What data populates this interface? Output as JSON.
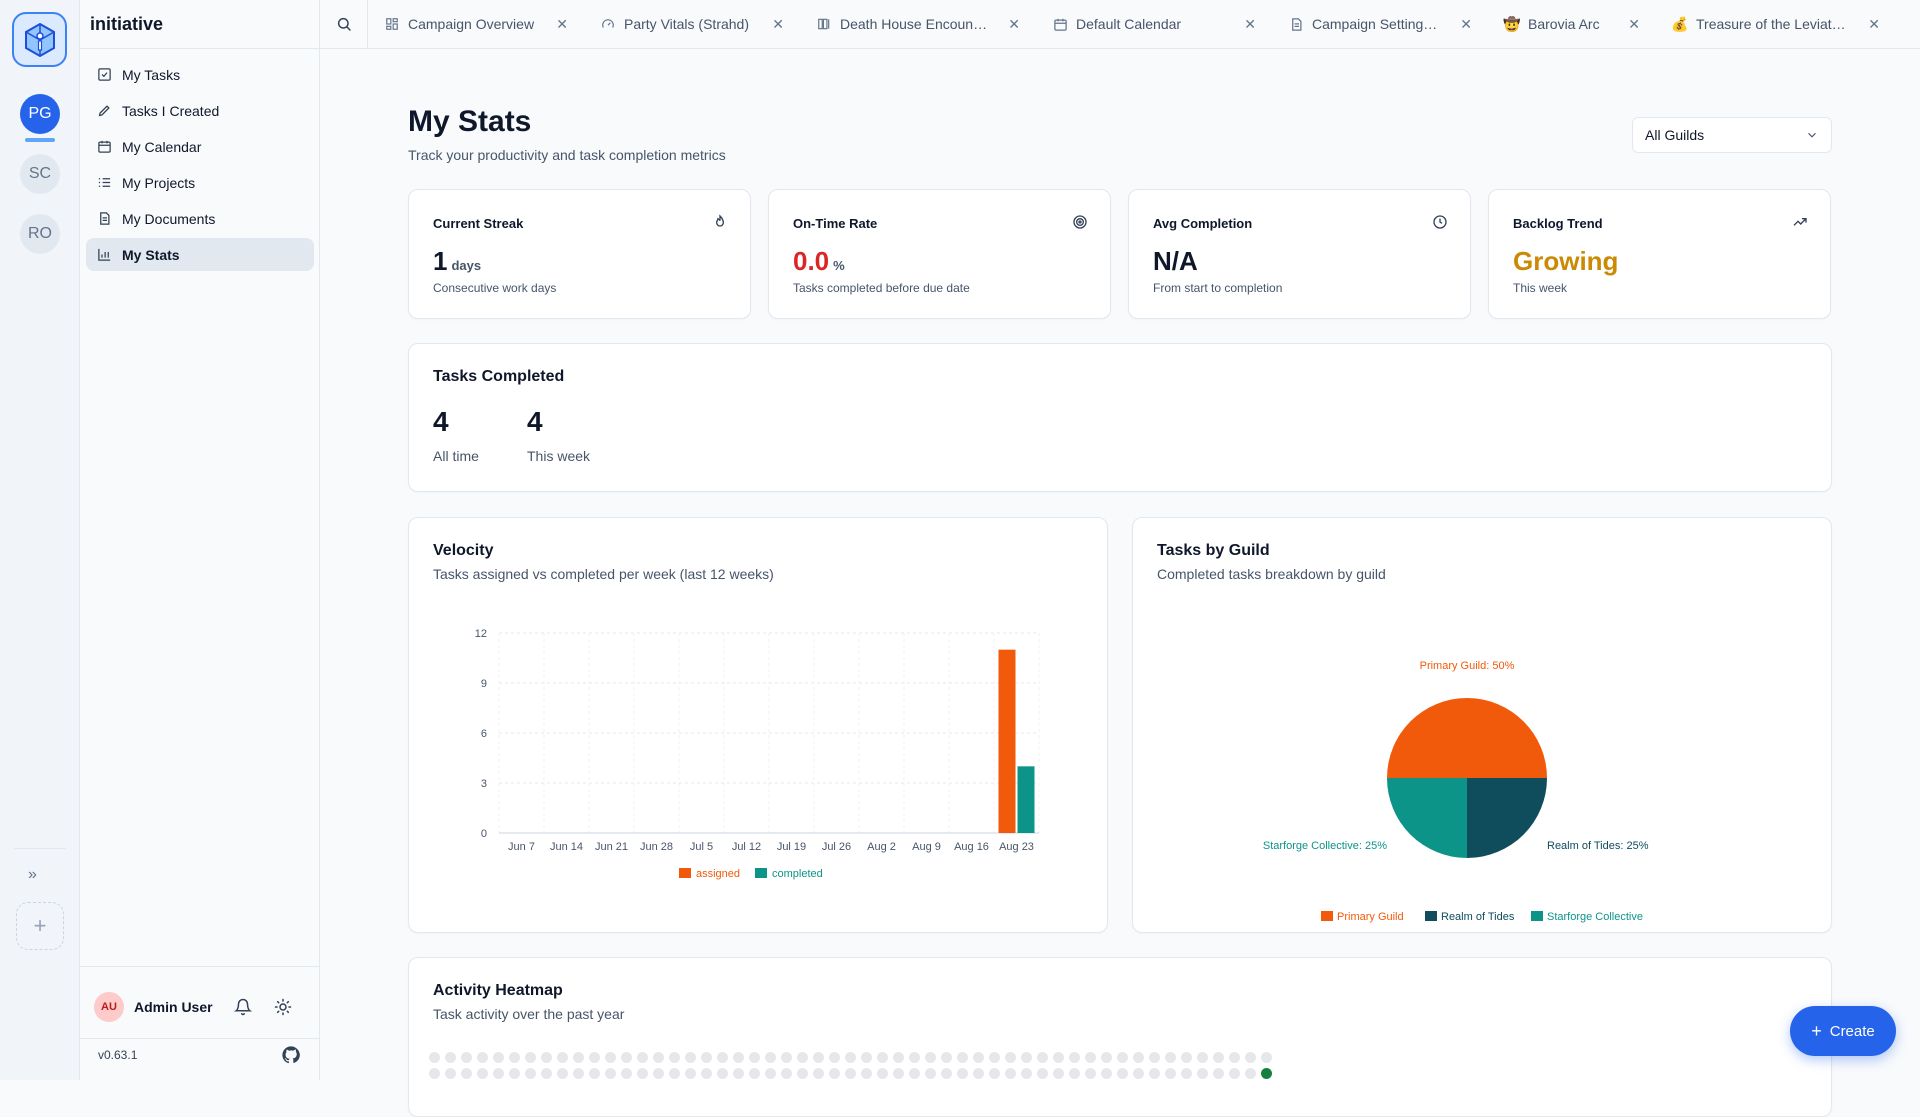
{
  "app": {
    "title": "initiative",
    "version": "v0.63.1"
  },
  "colors": {
    "accent": "#2563eb",
    "assigned": "#f15a0a",
    "completed": "#0d9488",
    "realm": "#0f4c5c",
    "warning": "#ca8a04",
    "danger": "#dc2626"
  },
  "guilds": [
    {
      "initials": "PG",
      "active": true
    },
    {
      "initials": "SC",
      "active": false
    },
    {
      "initials": "RO",
      "active": false
    }
  ],
  "nav": [
    {
      "label": "My Tasks",
      "icon": "check-square-icon"
    },
    {
      "label": "Tasks I Created",
      "icon": "pencil-icon"
    },
    {
      "label": "My Calendar",
      "icon": "calendar-icon"
    },
    {
      "label": "My Projects",
      "icon": "list-icon"
    },
    {
      "label": "My Documents",
      "icon": "document-icon"
    },
    {
      "label": "My Stats",
      "icon": "bar-chart-icon",
      "active": true
    }
  ],
  "user": {
    "initials": "AU",
    "name": "Admin User"
  },
  "tabs": [
    {
      "label": "Campaign Overview",
      "icon": "dashboard-icon"
    },
    {
      "label": "Party Vitals (Strahd)",
      "icon": "gauge-icon"
    },
    {
      "label": "Death House Encounter",
      "icon": "columns-icon"
    },
    {
      "label": "Default Calendar",
      "icon": "calendar-icon"
    },
    {
      "label": "Campaign Setting: The ...",
      "icon": "document-icon"
    },
    {
      "label": "Barovia Arc",
      "icon": "cowboy-emoji-icon",
      "glyph": "🤠"
    },
    {
      "label": "Treasure of the Leviathan",
      "icon": "money-bag-icon",
      "glyph": "💰"
    }
  ],
  "header": {
    "title": "My Stats",
    "subtitle": "Track your productivity and task completion metrics",
    "guild_filter": "All Guilds"
  },
  "stats": [
    {
      "title": "Current Streak",
      "value": "1",
      "unit": "days",
      "desc": "Consecutive work days",
      "icon": "flame-icon"
    },
    {
      "title": "On-Time Rate",
      "value": "0.0",
      "unit": "%",
      "desc": "Tasks completed before due date",
      "icon": "target-icon"
    },
    {
      "title": "Avg Completion",
      "value": "N/A",
      "unit": "",
      "desc": "From start to completion",
      "icon": "clock-icon"
    },
    {
      "title": "Backlog Trend",
      "value": "Growing",
      "unit": "",
      "desc": "This week",
      "icon": "trending-up-icon"
    }
  ],
  "completed": {
    "title": "Tasks Completed",
    "all_time_value": "4",
    "all_time_label": "All time",
    "week_value": "4",
    "week_label": "This week"
  },
  "velocity": {
    "title": "Velocity",
    "subtitle": "Tasks assigned vs completed per week (last 12 weeks)"
  },
  "guild_breakdown": {
    "title": "Tasks by Guild",
    "subtitle": "Completed tasks breakdown by guild"
  },
  "heatmap": {
    "title": "Activity Heatmap",
    "subtitle": "Task activity over the past year"
  },
  "create_label": "Create",
  "chart_data": [
    {
      "type": "bar",
      "categories": [
        "Jun 7",
        "Jun 14",
        "Jun 21",
        "Jun 28",
        "Jul 5",
        "Jul 12",
        "Jul 19",
        "Jul 26",
        "Aug 2",
        "Aug 9",
        "Aug 16",
        "Aug 23"
      ],
      "series": [
        {
          "name": "assigned",
          "values": [
            0,
            0,
            0,
            0,
            0,
            0,
            0,
            0,
            0,
            0,
            0,
            11
          ]
        },
        {
          "name": "completed",
          "values": [
            0,
            0,
            0,
            0,
            0,
            0,
            0,
            0,
            0,
            0,
            0,
            4
          ]
        }
      ],
      "ylim": [
        0,
        12
      ],
      "yticks": [
        0,
        3,
        6,
        9,
        12
      ],
      "grid": true,
      "legend": "bottom"
    },
    {
      "type": "pie",
      "labels": [
        "Primary Guild",
        "Realm of Tides",
        "Starforge Collective"
      ],
      "values": [
        50,
        25,
        25
      ],
      "slice_labels": [
        "Primary Guild: 50%",
        "Realm of Tides: 25%",
        "Starforge Collective: 25%"
      ],
      "colors": [
        "#f15a0a",
        "#0f4c5c",
        "#0d9488"
      ],
      "legend": "bottom"
    }
  ]
}
